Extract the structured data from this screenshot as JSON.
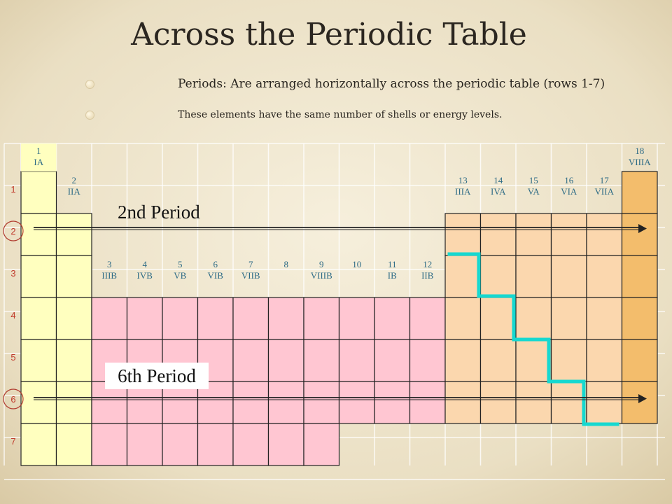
{
  "slide": {
    "title": "Across the Periodic Table",
    "bullets": [
      "Periods:  Are arranged horizontally across the periodic table (rows 1-7)",
      "These elements have the same number of shells or energy levels."
    ]
  },
  "table": {
    "period_numbers": [
      "1",
      "2",
      "3",
      "4",
      "5",
      "6",
      "7"
    ],
    "circled_periods": [
      "2",
      "6"
    ],
    "group_labels": [
      {
        "col": 0,
        "row": 0,
        "num": "1",
        "roman": "IA"
      },
      {
        "col": 1,
        "row": 1,
        "num": "2",
        "roman": "IIA"
      },
      {
        "col": 2,
        "row": 3,
        "num": "3",
        "roman": "IIIB"
      },
      {
        "col": 3,
        "row": 3,
        "num": "4",
        "roman": "IVB"
      },
      {
        "col": 4,
        "row": 3,
        "num": "5",
        "roman": "VB"
      },
      {
        "col": 5,
        "row": 3,
        "num": "6",
        "roman": "VIB"
      },
      {
        "col": 6,
        "row": 3,
        "num": "7",
        "roman": "VIIB"
      },
      {
        "col": 7,
        "row": 3,
        "num": "8",
        "roman": ""
      },
      {
        "col": 8,
        "row": 3,
        "num": "9",
        "roman": "VIIIB"
      },
      {
        "col": 9,
        "row": 3,
        "num": "10",
        "roman": ""
      },
      {
        "col": 10,
        "row": 3,
        "num": "11",
        "roman": "IB"
      },
      {
        "col": 11,
        "row": 3,
        "num": "12",
        "roman": "IIB"
      },
      {
        "col": 12,
        "row": 1,
        "num": "13",
        "roman": "IIIA"
      },
      {
        "col": 13,
        "row": 1,
        "num": "14",
        "roman": "IVA"
      },
      {
        "col": 14,
        "row": 1,
        "num": "15",
        "roman": "VA"
      },
      {
        "col": 15,
        "row": 1,
        "num": "16",
        "roman": "VIA"
      },
      {
        "col": 16,
        "row": 1,
        "num": "17",
        "roman": "VIIA"
      },
      {
        "col": 17,
        "row": 0,
        "num": "18",
        "roman": "VIIIA"
      }
    ]
  },
  "annotations": {
    "period2_label": "2nd Period",
    "period6_label": "6th Period"
  },
  "colors": {
    "s_block": "#ffffbf",
    "d_block": "#ffc6d2",
    "p_block": "#fbd7ae",
    "noble_gases": "#f3bd6c",
    "staircase": "#16d8d0",
    "label_text": "#2d6b86"
  }
}
